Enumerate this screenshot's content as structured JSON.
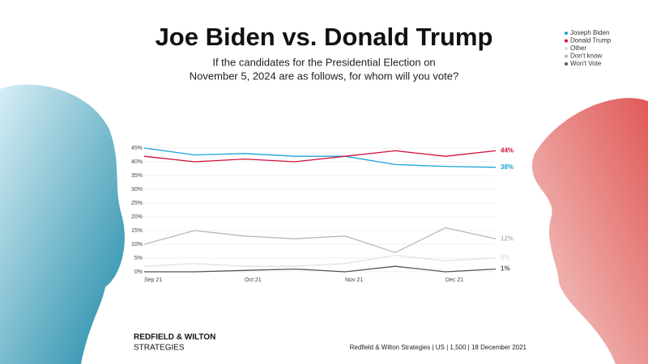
{
  "chart_data": {
    "type": "line",
    "title": "Joe Biden vs. Donald Trump",
    "subtitle": [
      "If the candidates for the Presidential Election on",
      "November 5, 2024 are as follows, for whom will you vote?"
    ],
    "categories": [
      "Sep 21",
      null,
      "Oct 21",
      null,
      "Nov 21",
      null,
      "Dec 21",
      null
    ],
    "series": [
      {
        "name": "Joseph Biden",
        "color": "#1ba3d8",
        "values": [
          45,
          42.5,
          43,
          42,
          42,
          39,
          38.3,
          38
        ],
        "value_labels": [
          null,
          null,
          null,
          null,
          null,
          null,
          null,
          "38%"
        ]
      },
      {
        "name": "Donald Trump",
        "color": "#d0103a",
        "values": [
          42,
          40,
          41,
          40,
          42,
          44,
          42,
          44
        ],
        "value_labels": [
          null,
          null,
          null,
          null,
          null,
          null,
          null,
          "44%"
        ]
      },
      {
        "name": "Other",
        "color": "#e2e2e2",
        "values": [
          2,
          3,
          2,
          2,
          3,
          6,
          4,
          5
        ],
        "value_labels": [
          null,
          null,
          null,
          null,
          null,
          null,
          null,
          "5%"
        ]
      },
      {
        "name": "Don't know",
        "color": "#b8b8b8",
        "values": [
          10,
          15,
          13,
          12,
          13,
          7,
          16,
          12
        ],
        "value_labels": [
          null,
          null,
          null,
          null,
          null,
          null,
          null,
          "12%"
        ]
      },
      {
        "name": "Won't Vote",
        "color": "#555555",
        "values": [
          0,
          0,
          0.5,
          1,
          0,
          2,
          0,
          1
        ],
        "value_labels": [
          null,
          null,
          null,
          null,
          null,
          null,
          null,
          "1%"
        ]
      }
    ],
    "ylim": [
      0,
      45
    ],
    "yticks": [
      {
        "value": 0,
        "label": "0%"
      },
      {
        "value": 5,
        "label": "5%"
      },
      {
        "value": 10,
        "label": "10%"
      },
      {
        "value": 15,
        "label": "15%"
      },
      {
        "value": 20,
        "label": "20%"
      },
      {
        "value": 25,
        "label": "25%"
      },
      {
        "value": 30,
        "label": "30%"
      },
      {
        "value": 35,
        "label": "35%"
      },
      {
        "value": 40,
        "label": "40%"
      },
      {
        "value": 45,
        "label": "45%"
      }
    ],
    "grid": true,
    "legend": "top-right",
    "brand": [
      "REDFIELD & WILTON",
      "STRATEGIES"
    ],
    "source": "Redfield & Wilton Strategies | US | 1,500 | 18 December 2021"
  }
}
